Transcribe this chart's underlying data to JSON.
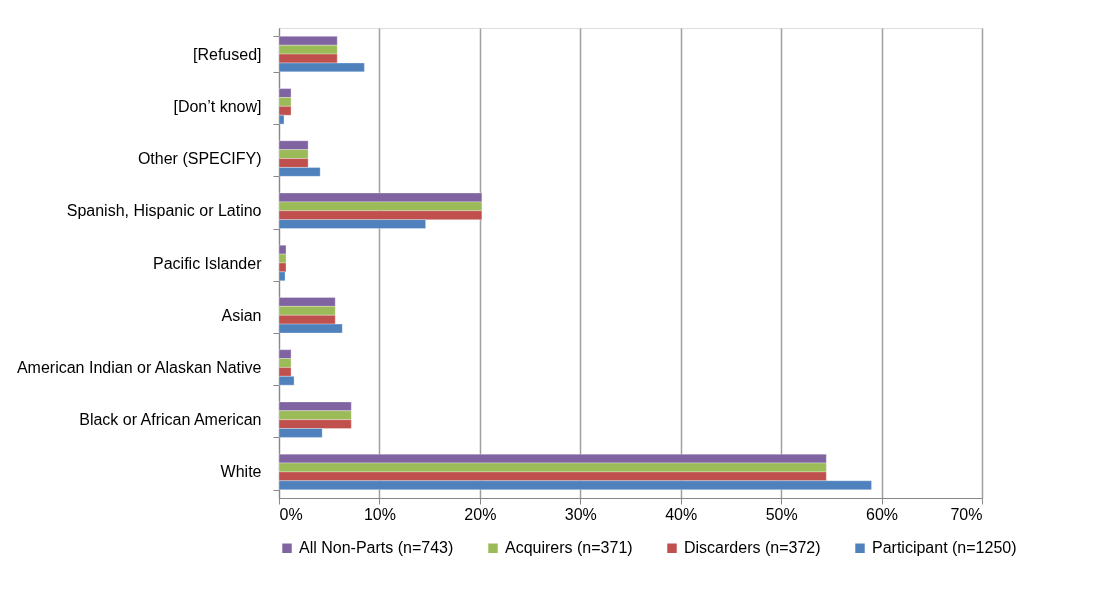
{
  "chart_data": {
    "type": "bar",
    "orientation": "horizontal",
    "categories": [
      "[Refused]",
      "[Don’t know]",
      "Other (SPECIFY)",
      "Spanish, Hispanic or Latino",
      "Pacific Islander",
      "Asian",
      "American Indian or Alaskan Native",
      "Black or African American",
      "White"
    ],
    "series": [
      {
        "name": "All Non-Parts (n=743)",
        "color": "#8064a2",
        "values": [
          5.8,
          1.2,
          2.9,
          20.2,
          0.7,
          5.6,
          1.2,
          7.2,
          54.5
        ]
      },
      {
        "name": "Acquirers (n=371)",
        "color": "#9bbb59",
        "values": [
          5.8,
          1.2,
          2.9,
          20.2,
          0.7,
          5.6,
          1.2,
          7.2,
          54.5
        ]
      },
      {
        "name": "Discarders (n=372)",
        "color": "#c0504d",
        "values": [
          5.8,
          1.2,
          2.9,
          20.2,
          0.7,
          5.6,
          1.2,
          7.2,
          54.5
        ]
      },
      {
        "name": "Participant (n=1250)",
        "color": "#4f81bd",
        "values": [
          8.5,
          0.5,
          4.1,
          14.6,
          0.6,
          6.3,
          1.5,
          4.3,
          59.0
        ]
      }
    ],
    "xlim": [
      0,
      70
    ],
    "xticks": [
      {
        "value": 0,
        "label": "0%"
      },
      {
        "value": 10,
        "label": "10%"
      },
      {
        "value": 20,
        "label": "20%"
      },
      {
        "value": 30,
        "label": "30%"
      },
      {
        "value": 40,
        "label": "40%"
      },
      {
        "value": 50,
        "label": "50%"
      },
      {
        "value": 60,
        "label": "60%"
      },
      {
        "value": 70,
        "label": "70%"
      }
    ],
    "grid": "x",
    "legend": "bottom"
  }
}
